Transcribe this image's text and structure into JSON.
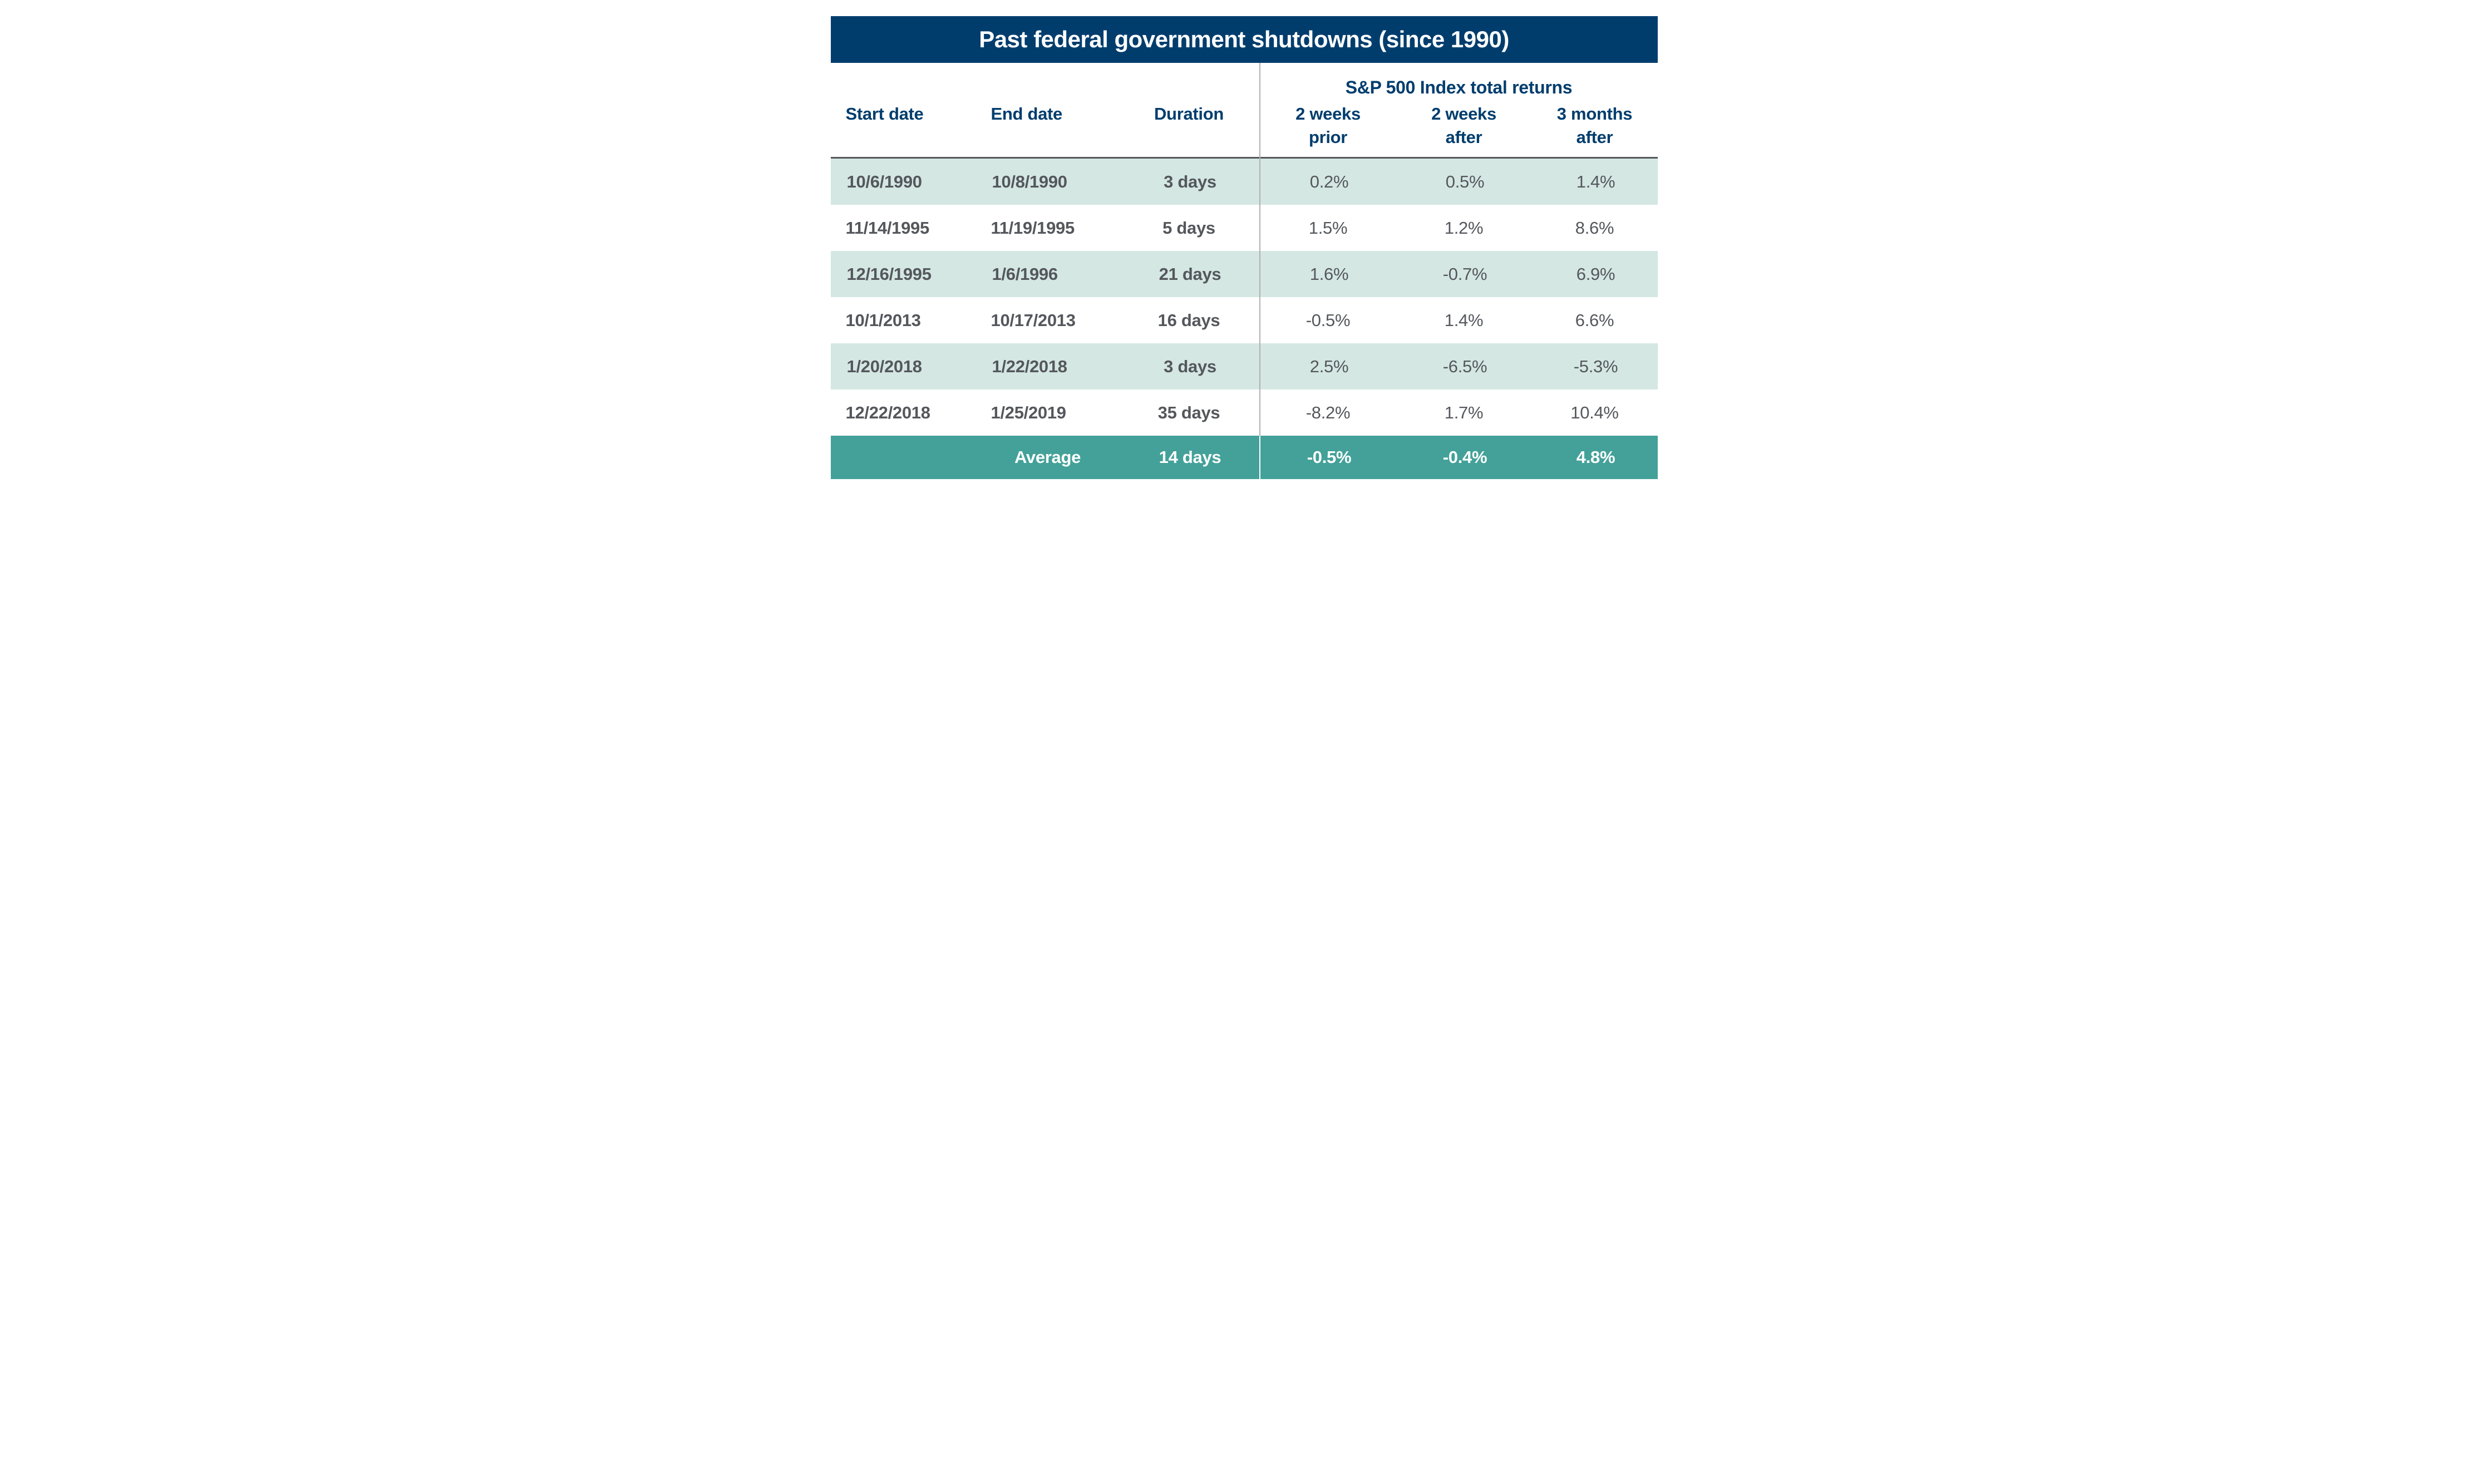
{
  "title": "Past federal government shutdowns (since 1990)",
  "sp_header": "S&P 500 Index total returns",
  "columns": [
    {
      "line1": "Start date",
      "line2": ""
    },
    {
      "line1": "End date",
      "line2": ""
    },
    {
      "line1": "Duration",
      "line2": ""
    },
    {
      "line1": "2 weeks",
      "line2": "prior"
    },
    {
      "line1": "2 weeks",
      "line2": "after"
    },
    {
      "line1": "3 months",
      "line2": "after"
    }
  ],
  "rows": [
    {
      "start": "10/6/1990",
      "end": "10/8/1990",
      "duration": "3 days",
      "prior": "0.2%",
      "after2w": "0.5%",
      "after3m": "1.4%"
    },
    {
      "start": "11/14/1995",
      "end": "11/19/1995",
      "duration": "5 days",
      "prior": "1.5%",
      "after2w": "1.2%",
      "after3m": "8.6%"
    },
    {
      "start": "12/16/1995",
      "end": "1/6/1996",
      "duration": "21 days",
      "prior": "1.6%",
      "after2w": "-0.7%",
      "after3m": "6.9%"
    },
    {
      "start": "10/1/2013",
      "end": "10/17/2013",
      "duration": "16 days",
      "prior": "-0.5%",
      "after2w": "1.4%",
      "after3m": "6.6%"
    },
    {
      "start": "1/20/2018",
      "end": "1/22/2018",
      "duration": "3 days",
      "prior": "2.5%",
      "after2w": "-6.5%",
      "after3m": "-5.3%"
    },
    {
      "start": "12/22/2018",
      "end": "1/25/2019",
      "duration": "35 days",
      "prior": "-8.2%",
      "after2w": "1.7%",
      "after3m": "10.4%"
    }
  ],
  "average": {
    "label": "Average",
    "duration": "14 days",
    "prior": "-0.5%",
    "after2w": "-0.4%",
    "after3m": "4.8%"
  },
  "colors": {
    "navy": "#003d6d",
    "mint_row": "#d4e7e3",
    "teal_average_row": "#43a199",
    "data_text": "#54575c",
    "header_rule": "#54565a",
    "column_divider": "#b0b0b0"
  },
  "chart_data": {
    "type": "table",
    "title": "Past federal government shutdowns (since 1990)",
    "column_group_header": "S&P 500 Index total returns",
    "column_group_applies_to": [
      "2 weeks prior",
      "2 weeks after",
      "3 months after"
    ],
    "columns": [
      "Start date",
      "End date",
      "Duration",
      "2 weeks prior",
      "2 weeks after",
      "3 months after"
    ],
    "rows": [
      [
        "10/6/1990",
        "10/8/1990",
        "3 days",
        "0.2%",
        "0.5%",
        "1.4%"
      ],
      [
        "11/14/1995",
        "11/19/1995",
        "5 days",
        "1.5%",
        "1.2%",
        "8.6%"
      ],
      [
        "12/16/1995",
        "1/6/1996",
        "21 days",
        "1.6%",
        "-0.7%",
        "6.9%"
      ],
      [
        "10/1/2013",
        "10/17/2013",
        "16 days",
        "-0.5%",
        "1.4%",
        "6.6%"
      ],
      [
        "1/20/2018",
        "1/22/2018",
        "3 days",
        "2.5%",
        "-6.5%",
        "-5.3%"
      ],
      [
        "12/22/2018",
        "1/25/2019",
        "35 days",
        "-8.2%",
        "1.7%",
        "10.4%"
      ]
    ],
    "footer_row": [
      "",
      "Average",
      "14 days",
      "-0.5%",
      "-0.4%",
      "4.8%"
    ],
    "layout": {
      "divider_after_column": 3,
      "row_striping": [
        "mint",
        "white"
      ],
      "footer_style": "teal solid, white bold text"
    }
  }
}
